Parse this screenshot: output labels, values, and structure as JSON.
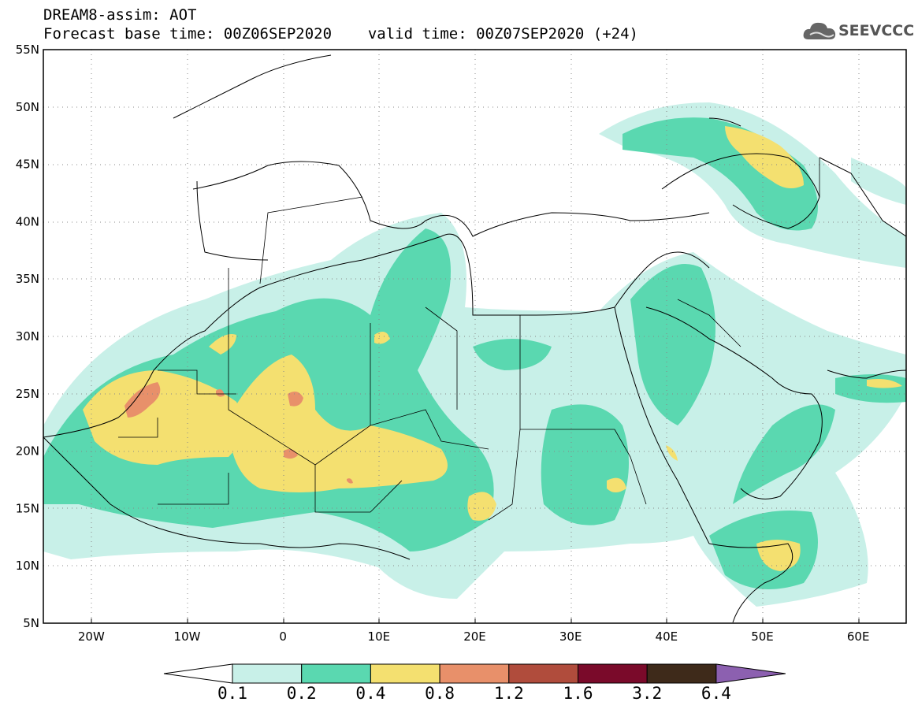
{
  "header": {
    "title": "DREAM8-assim: AOT",
    "forecast_base_label": "Forecast base time: 00Z06SEP2020",
    "valid_time_label": "valid time: 00Z07SEP2020 (+24)"
  },
  "logo": {
    "text": "SEEVCCC",
    "icon": "cloud-icon"
  },
  "map": {
    "lat_labels": [
      "55N",
      "50N",
      "45N",
      "40N",
      "35N",
      "30N",
      "25N",
      "20N",
      "15N",
      "10N",
      "5N"
    ],
    "lon_labels": [
      "20W",
      "10W",
      "0",
      "10E",
      "20E",
      "30E",
      "40E",
      "50E",
      "60E"
    ],
    "lon_range": [
      -25,
      65
    ],
    "lat_range": [
      5,
      55
    ],
    "grid": "dotted"
  },
  "colorbar": {
    "labels": [
      "0.1",
      "0.2",
      "0.4",
      "0.8",
      "1.2",
      "1.6",
      "3.2",
      "6.4"
    ],
    "colors": [
      "#ffffff",
      "#c8f0e8",
      "#5ad8b0",
      "#f4e070",
      "#e8906a",
      "#b04c3c",
      "#7a0a2a",
      "#3e2a1a",
      "#8c60b0"
    ]
  }
}
